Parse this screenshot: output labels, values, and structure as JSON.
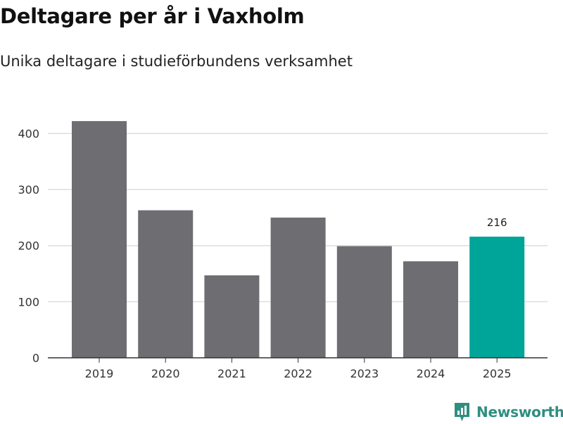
{
  "header": {
    "title": "Deltagare per år i Vaxholm",
    "subtitle": "Unika deltagare i studieförbundens verksamhet"
  },
  "chart_data": {
    "type": "bar",
    "title": "Deltagare per år i Vaxholm",
    "subtitle": "Unika deltagare i studieförbundens verksamhet",
    "xlabel": "",
    "ylabel": "",
    "categories": [
      "2019",
      "2020",
      "2021",
      "2022",
      "2023",
      "2024",
      "2025"
    ],
    "values": [
      422,
      263,
      147,
      250,
      199,
      172,
      216
    ],
    "ylim": [
      0,
      440
    ],
    "yticks": [
      0,
      100,
      200,
      300,
      400
    ],
    "grid": true,
    "highlight_index": 6,
    "data_labels": [
      {
        "index": 6,
        "text": "216"
      }
    ],
    "colors": {
      "bar": "#6e6d72",
      "highlight": "#00a59a",
      "grid": "#dddddd",
      "axis": "#333333"
    }
  },
  "brand": {
    "name": "Newsworthy",
    "icon": "newsworthy-logo-icon",
    "color": "#2e8f80"
  }
}
